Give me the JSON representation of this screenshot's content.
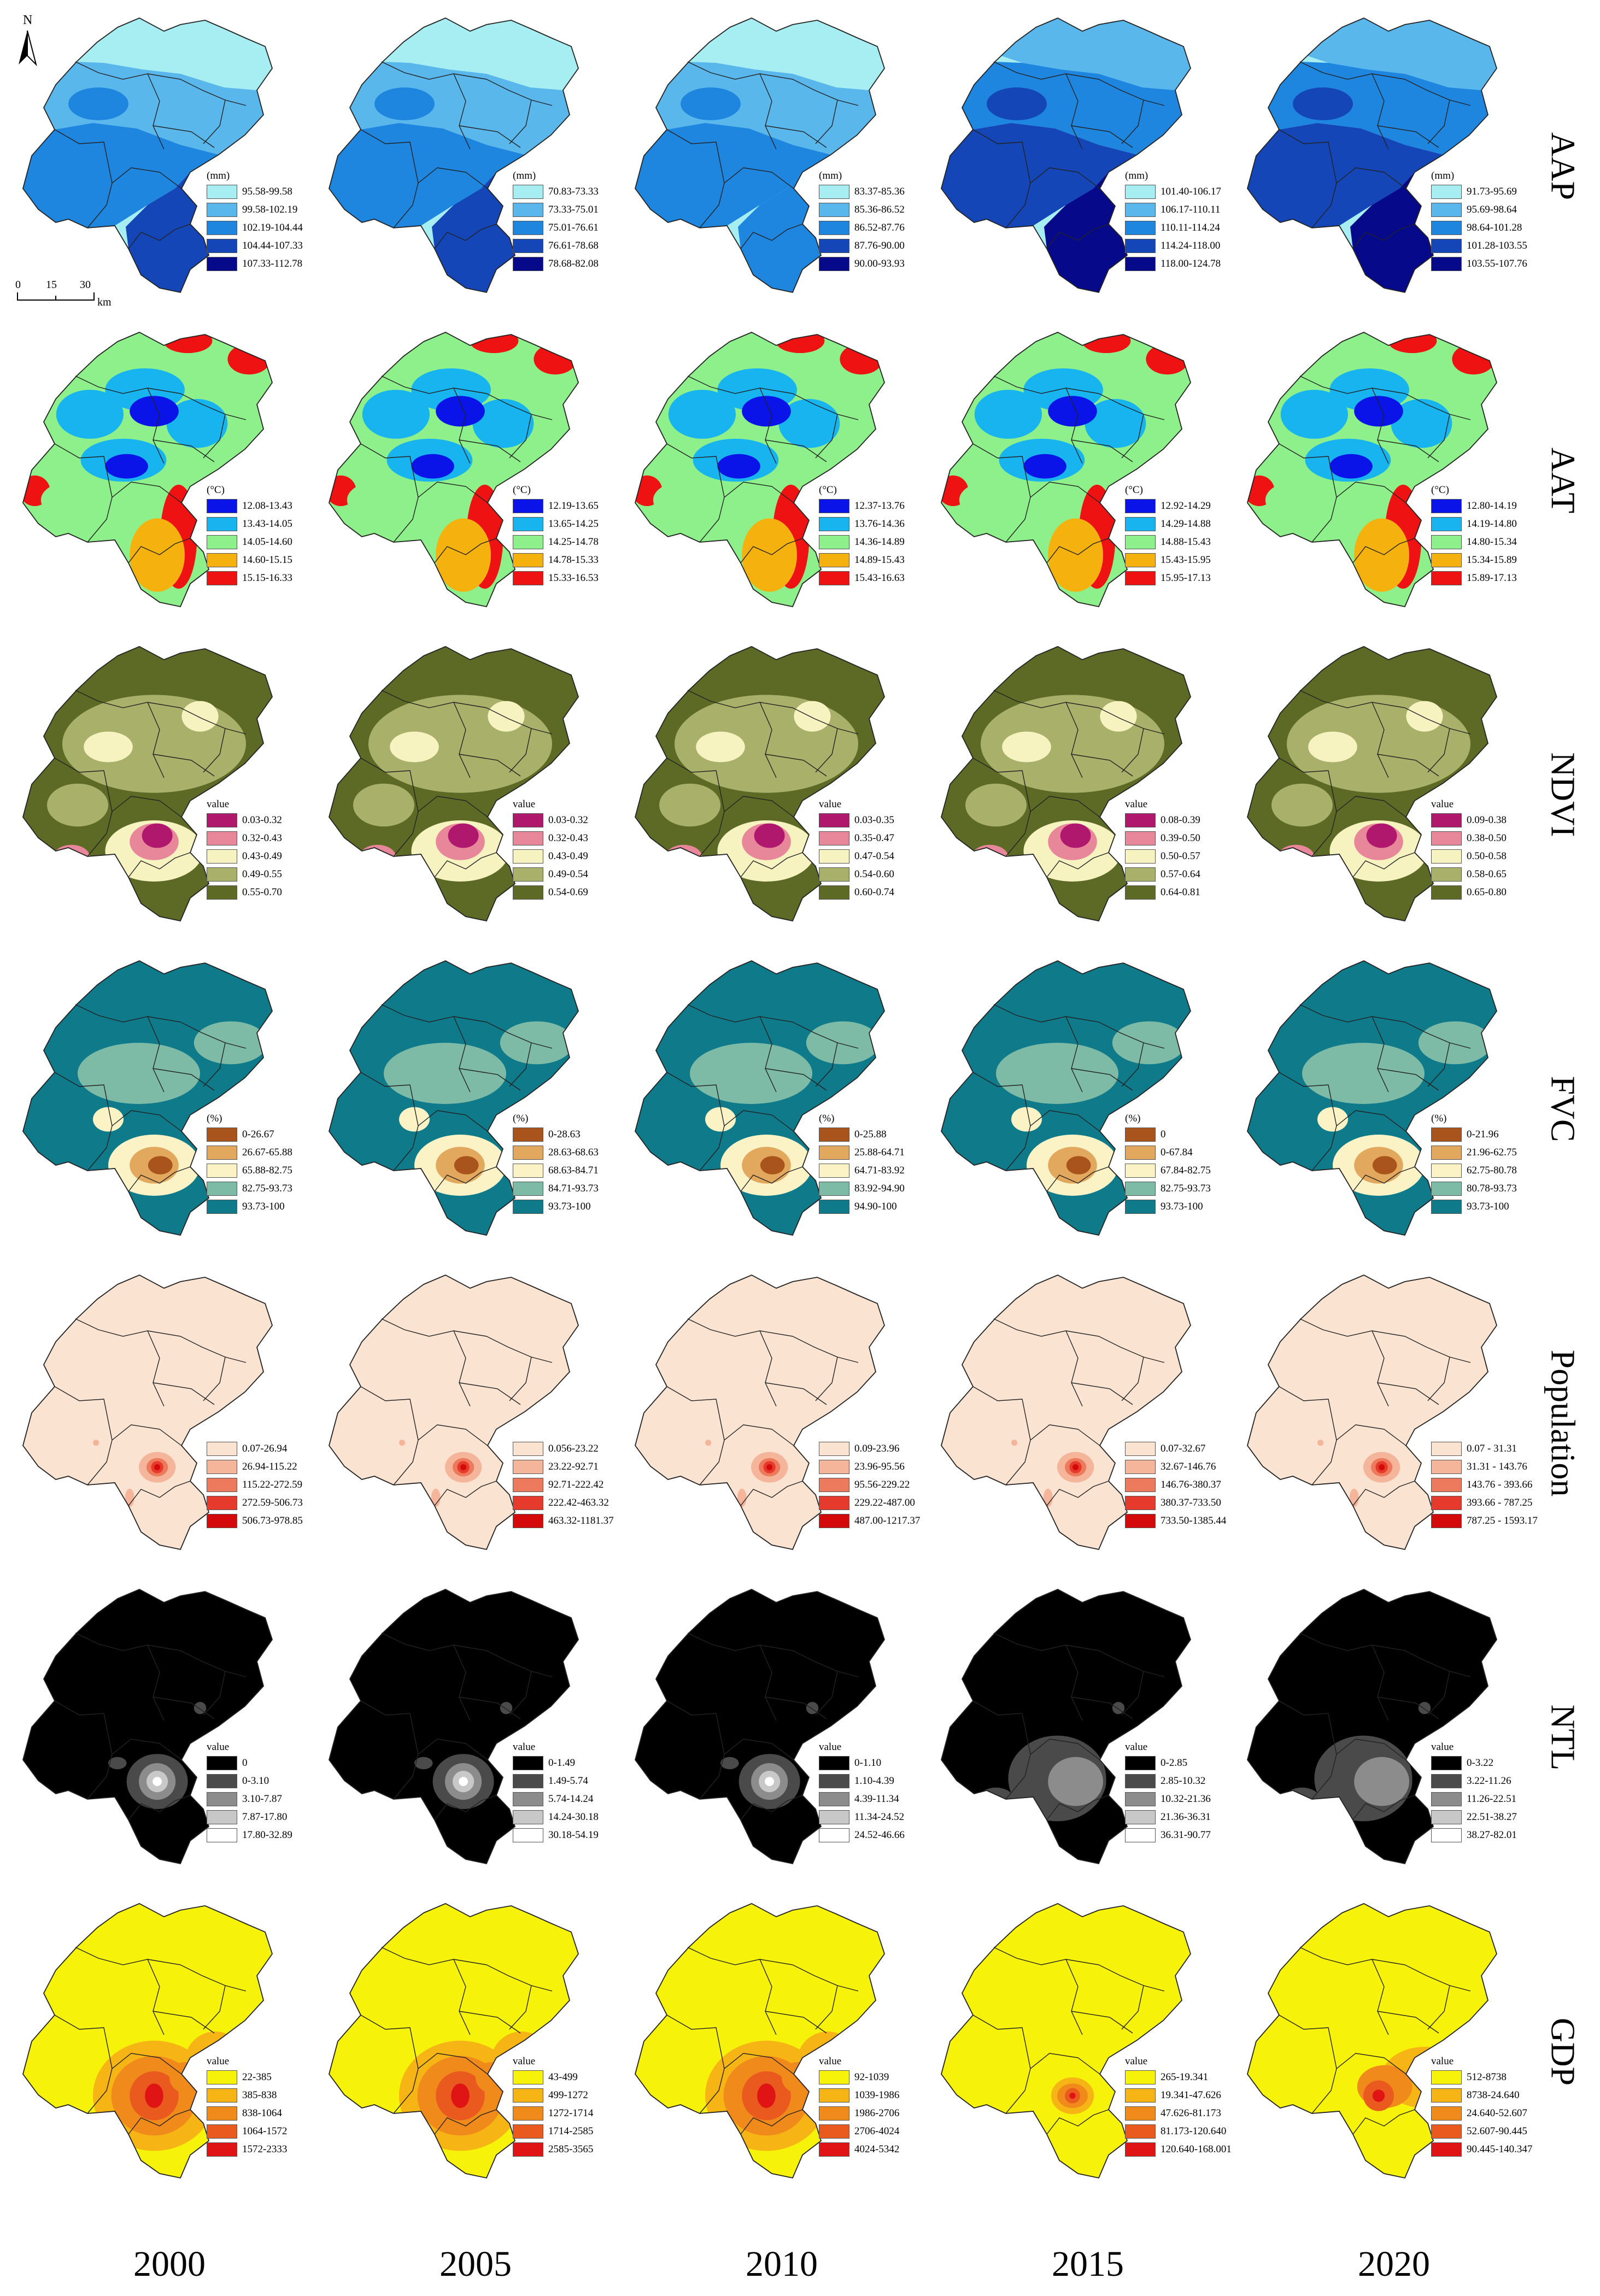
{
  "north_label": "N",
  "scale_bar": {
    "ticks": [
      "0",
      "15",
      "30"
    ],
    "unit": "km"
  },
  "years": [
    "2000",
    "2005",
    "2010",
    "2015",
    "2020"
  ],
  "rows": [
    {
      "label": "AAP",
      "colors": [
        "#a6eef2",
        "#5ab7ec",
        "#1f86e0",
        "#1446b8",
        "#060a8a"
      ],
      "legends": [
        {
          "unit": "(mm)",
          "classes": [
            "95.58-99.58",
            "99.58-102.19",
            "102.19-104.44",
            "104.44-107.33",
            "107.33-112.78"
          ]
        },
        {
          "unit": "(mm)",
          "classes": [
            "70.83-73.33",
            "73.33-75.01",
            "75.01-76.61",
            "76.61-78.68",
            "78.68-82.08"
          ]
        },
        {
          "unit": "(mm)",
          "classes": [
            "83.37-85.36",
            "85.36-86.52",
            "86.52-87.76",
            "87.76-90.00",
            "90.00-93.93"
          ]
        },
        {
          "unit": "(mm)",
          "classes": [
            "101.40-106.17",
            "106.17-110.11",
            "110.11-114.24",
            "114.24-118.00",
            "118.00-124.78"
          ]
        },
        {
          "unit": "(mm)",
          "classes": [
            "91.73-95.69",
            "95.69-98.64",
            "98.64-101.28",
            "101.28-103.55",
            "103.55-107.76"
          ]
        }
      ]
    },
    {
      "label": "AAT",
      "colors": [
        "#0a14e8",
        "#18b4f0",
        "#8df08a",
        "#f5b20f",
        "#ee1212"
      ],
      "legends": [
        {
          "unit": "(°C)",
          "classes": [
            "12.08-13.43",
            "13.43-14.05",
            "14.05-14.60",
            "14.60-15.15",
            "15.15-16.33"
          ]
        },
        {
          "unit": "(°C)",
          "classes": [
            "12.19-13.65",
            "13.65-14.25",
            "14.25-14.78",
            "14.78-15.33",
            "15.33-16.53"
          ]
        },
        {
          "unit": "(°C)",
          "classes": [
            "12.37-13.76",
            "13.76-14.36",
            "14.36-14.89",
            "14.89-15.43",
            "15.43-16.63"
          ]
        },
        {
          "unit": "(°C)",
          "classes": [
            "12.92-14.29",
            "14.29-14.88",
            "14.88-15.43",
            "15.43-15.95",
            "15.95-17.13"
          ]
        },
        {
          "unit": "(°C)",
          "classes": [
            "12.80-14.19",
            "14.19-14.80",
            "14.80-15.34",
            "15.34-15.89",
            "15.89-17.13"
          ]
        }
      ]
    },
    {
      "label": "NDVI",
      "colors": [
        "#b0186e",
        "#e8879a",
        "#f7f3c0",
        "#a9b06a",
        "#5c6a26"
      ],
      "legends": [
        {
          "unit": "value",
          "classes": [
            "0.03-0.32",
            "0.32-0.43",
            "0.43-0.49",
            "0.49-0.55",
            "0.55-0.70"
          ]
        },
        {
          "unit": "value",
          "classes": [
            "0.03-0.32",
            "0.32-0.43",
            "0.43-0.49",
            "0.49-0.54",
            "0.54-0.69"
          ]
        },
        {
          "unit": "value",
          "classes": [
            "0.03-0.35",
            "0.35-0.47",
            "0.47-0.54",
            "0.54-0.60",
            "0.60-0.74"
          ]
        },
        {
          "unit": "value",
          "classes": [
            "0.08-0.39",
            "0.39-0.50",
            "0.50-0.57",
            "0.57-0.64",
            "0.64-0.81"
          ]
        },
        {
          "unit": "value",
          "classes": [
            "0.09-0.38",
            "0.38-0.50",
            "0.50-0.58",
            "0.58-0.65",
            "0.65-0.80"
          ]
        }
      ]
    },
    {
      "label": "FVC",
      "colors": [
        "#a9541c",
        "#e2a85e",
        "#fbf3c6",
        "#7dbba6",
        "#0e7a8a"
      ],
      "legends": [
        {
          "unit": "(%)",
          "classes": [
            "0-26.67",
            "26.67-65.88",
            "65.88-82.75",
            "82.75-93.73",
            "93.73-100"
          ]
        },
        {
          "unit": "(%)",
          "classes": [
            "0-28.63",
            "28.63-68.63",
            "68.63-84.71",
            "84.71-93.73",
            "93.73-100"
          ]
        },
        {
          "unit": "(%)",
          "classes": [
            "0-25.88",
            "25.88-64.71",
            "64.71-83.92",
            "83.92-94.90",
            "94.90-100"
          ]
        },
        {
          "unit": "(%)",
          "classes": [
            "0",
            "0-67.84",
            "67.84-82.75",
            "82.75-93.73",
            "93.73-100"
          ]
        },
        {
          "unit": "(%)",
          "classes": [
            "0-21.96",
            "21.96-62.75",
            "62.75-80.78",
            "80.78-93.73",
            "93.73-100"
          ]
        }
      ]
    },
    {
      "label": "Population",
      "colors": [
        "#fbe3d2",
        "#f5b59a",
        "#ee7a5e",
        "#e53a2c",
        "#d40a0a"
      ],
      "legends": [
        {
          "unit": "",
          "classes": [
            "0.07-26.94",
            "26.94-115.22",
            "115.22-272.59",
            "272.59-506.73",
            "506.73-978.85"
          ]
        },
        {
          "unit": "",
          "classes": [
            "0.056-23.22",
            "23.22-92.71",
            "92.71-222.42",
            "222.42-463.32",
            "463.32-1181.37"
          ]
        },
        {
          "unit": "",
          "classes": [
            "0.09-23.96",
            "23.96-95.56",
            "95.56-229.22",
            "229.22-487.00",
            "487.00-1217.37"
          ]
        },
        {
          "unit": "",
          "classes": [
            "0.07-32.67",
            "32.67-146.76",
            "146.76-380.37",
            "380.37-733.50",
            "733.50-1385.44"
          ]
        },
        {
          "unit": "",
          "classes": [
            "0.07 - 31.31",
            "31.31 - 143.76",
            "143.76 - 393.66",
            "393.66 - 787.25",
            "787.25 - 1593.17"
          ]
        }
      ]
    },
    {
      "label": "NTL",
      "colors": [
        "#000000",
        "#4a4a4a",
        "#8c8c8c",
        "#c8c8c8",
        "#ffffff"
      ],
      "legends": [
        {
          "unit": "value",
          "classes": [
            "0",
            "0-3.10",
            "3.10-7.87",
            "7.87-17.80",
            "17.80-32.89"
          ]
        },
        {
          "unit": "value",
          "classes": [
            "0-1.49",
            "1.49-5.74",
            "5.74-14.24",
            "14.24-30.18",
            "30.18-54.19"
          ]
        },
        {
          "unit": "value",
          "classes": [
            "0-1.10",
            "1.10-4.39",
            "4.39-11.34",
            "11.34-24.52",
            "24.52-46.66"
          ]
        },
        {
          "unit": "value",
          "classes": [
            "0-2.85",
            "2.85-10.32",
            "10.32-21.36",
            "21.36-36.31",
            "36.31-90.77"
          ]
        },
        {
          "unit": "value",
          "classes": [
            "0-3.22",
            "3.22-11.26",
            "11.26-22.51",
            "22.51-38.27",
            "38.27-82.01"
          ]
        }
      ]
    },
    {
      "label": "GDP",
      "colors": [
        "#f6f20a",
        "#f6b514",
        "#f08a1a",
        "#ea5a1e",
        "#e01414"
      ],
      "legends": [
        {
          "unit": "value",
          "classes": [
            "22-385",
            "385-838",
            "838-1064",
            "1064-1572",
            "1572-2333"
          ]
        },
        {
          "unit": "value",
          "classes": [
            "43-499",
            "499-1272",
            "1272-1714",
            "1714-2585",
            "2585-3565"
          ]
        },
        {
          "unit": "value",
          "classes": [
            "92-1039",
            "1039-1986",
            "1986-2706",
            "2706-4024",
            "4024-5342"
          ]
        },
        {
          "unit": "value",
          "classes": [
            "265-19.341",
            "19.341-47.626",
            "47.626-81.173",
            "81.173-120.640",
            "120.640-168.001"
          ]
        },
        {
          "unit": "value",
          "classes": [
            "512-8738",
            "8738-24.640",
            "24.640-52.607",
            "52.607-90.445",
            "90.445-140.347"
          ]
        }
      ]
    }
  ]
}
